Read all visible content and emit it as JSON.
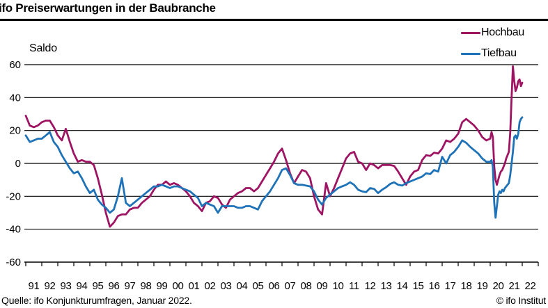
{
  "header": {
    "title": "ifo Preiserwartungen in der Baubranche"
  },
  "chart": {
    "y_axis_label": "Saldo",
    "legend": [
      {
        "label": "Hochbau",
        "color": "#9e1463"
      },
      {
        "label": "Tiefbau",
        "color": "#1e72b8"
      }
    ]
  },
  "chart_data": {
    "type": "line",
    "title": "ifo Preiserwartungen in der Baubranche",
    "ylabel": "Saldo",
    "ylim": [
      -60,
      60
    ],
    "y_ticks": [
      60,
      40,
      20,
      0,
      -20,
      -40,
      -60
    ],
    "x_tick_labels": [
      "91",
      "92",
      "93",
      "94",
      "95",
      "96",
      "97",
      "98",
      "99",
      "00",
      "01",
      "02",
      "03",
      "04",
      "05",
      "06",
      "07",
      "08",
      "09",
      "10",
      "11",
      "12",
      "13",
      "14",
      "15",
      "16",
      "17",
      "18",
      "19",
      "20",
      "21",
      "22"
    ],
    "x_range": [
      1991.0,
      2023.0
    ],
    "grid": true,
    "legend_position": "top-right",
    "x": [
      1991.0,
      1991.25,
      1991.5,
      1991.75,
      1992.0,
      1992.25,
      1992.5,
      1992.75,
      1993.0,
      1993.25,
      1993.5,
      1993.75,
      1994.0,
      1994.25,
      1994.5,
      1994.75,
      1995.0,
      1995.25,
      1995.5,
      1995.75,
      1996.0,
      1996.25,
      1996.5,
      1996.75,
      1997.0,
      1997.25,
      1997.5,
      1997.75,
      1998.0,
      1998.25,
      1998.5,
      1998.75,
      1999.0,
      1999.25,
      1999.5,
      1999.75,
      2000.0,
      2000.25,
      2000.5,
      2000.75,
      2001.0,
      2001.25,
      2001.5,
      2001.75,
      2002.0,
      2002.25,
      2002.5,
      2002.75,
      2003.0,
      2003.25,
      2003.5,
      2003.75,
      2004.0,
      2004.25,
      2004.5,
      2004.75,
      2005.0,
      2005.25,
      2005.5,
      2005.75,
      2006.0,
      2006.25,
      2006.5,
      2006.75,
      2007.0,
      2007.25,
      2007.5,
      2007.75,
      2008.0,
      2008.25,
      2008.5,
      2008.75,
      2009.0,
      2009.25,
      2009.5,
      2009.75,
      2010.0,
      2010.25,
      2010.5,
      2010.75,
      2011.0,
      2011.25,
      2011.5,
      2011.75,
      2012.0,
      2012.25,
      2012.5,
      2012.75,
      2013.0,
      2013.25,
      2013.5,
      2013.75,
      2014.0,
      2014.25,
      2014.5,
      2014.75,
      2015.0,
      2015.25,
      2015.5,
      2015.75,
      2016.0,
      2016.25,
      2016.5,
      2016.75,
      2017.0,
      2017.25,
      2017.5,
      2017.75,
      2018.0,
      2018.25,
      2018.5,
      2018.75,
      2019.0,
      2019.25,
      2019.5,
      2019.75,
      2020.0,
      2020.083,
      2020.167,
      2020.25,
      2020.333,
      2020.417,
      2020.5,
      2020.583,
      2020.667,
      2020.75,
      2020.833,
      2020.917,
      2021.0,
      2021.083,
      2021.167,
      2021.25,
      2021.333,
      2021.417,
      2021.5,
      2021.583,
      2021.667,
      2021.75,
      2021.833,
      2021.917,
      2022.0
    ],
    "series": [
      {
        "name": "Hochbau",
        "color": "#9e1463",
        "values": [
          29,
          23,
          22,
          23,
          25,
          26,
          26,
          22,
          17,
          14,
          21,
          13,
          6,
          1,
          2,
          1,
          1,
          -1,
          -9,
          -19,
          -30,
          -38.5,
          -36,
          -32,
          -31,
          -31,
          -28,
          -27,
          -27,
          -24,
          -22,
          -20,
          -16,
          -13,
          -13,
          -11,
          -13,
          -12,
          -13,
          -15,
          -17,
          -20,
          -24,
          -26,
          -29,
          -24,
          -23,
          -20,
          -21,
          -25,
          -27,
          -22,
          -20,
          -18,
          -17,
          -15,
          -15,
          -17,
          -15,
          -11,
          -7,
          -3,
          1,
          6,
          9,
          2,
          -6,
          -12,
          -8,
          -4,
          -5,
          -9,
          -20,
          -28,
          -31,
          -12,
          -20,
          -15,
          -9,
          -3,
          3,
          6,
          7,
          1,
          0,
          -4,
          0,
          -1,
          -3,
          -1,
          -1,
          -1,
          -1.5,
          -5,
          -9,
          -13,
          -8,
          -5,
          -4,
          2,
          5,
          4.5,
          6.5,
          6,
          9,
          14,
          13,
          15,
          18,
          25,
          27,
          25,
          23,
          20,
          16,
          14,
          15,
          19,
          16,
          -2,
          -10,
          -13,
          -10,
          -7,
          -5,
          -4,
          -2,
          0,
          3,
          5,
          7,
          19,
          40,
          59,
          50,
          44,
          46,
          50,
          51,
          47,
          49
        ]
      },
      {
        "name": "Tiefbau",
        "color": "#1e72b8",
        "values": [
          17,
          13,
          14,
          15,
          15,
          17,
          19,
          13,
          10,
          5,
          1,
          -3,
          -6,
          -5,
          -9,
          -14,
          -18,
          -16,
          -22,
          -25,
          -27,
          -30,
          -28,
          -20,
          -9,
          -24,
          -26,
          -24,
          -22,
          -20,
          -18,
          -16,
          -14,
          -14,
          -13,
          -14,
          -15,
          -14,
          -14,
          -15,
          -16,
          -17,
          -19,
          -21,
          -26,
          -24,
          -25,
          -26,
          -30,
          -26,
          -26,
          -26,
          -26,
          -27,
          -27,
          -26,
          -26,
          -27,
          -28,
          -23,
          -20,
          -17,
          -13,
          -9,
          -4,
          -3,
          -7,
          -12,
          -13,
          -13,
          -13.5,
          -14,
          -17,
          -22,
          -25,
          -21,
          -19,
          -17,
          -15,
          -14,
          -13,
          -11.5,
          -13,
          -16,
          -17,
          -17.5,
          -15,
          -15.5,
          -18,
          -16,
          -14.5,
          -12.5,
          -11.5,
          -13,
          -13.5,
          -12,
          -11,
          -10,
          -9,
          -8,
          -6,
          -6.5,
          -4,
          -5,
          4,
          0,
          5,
          7,
          10,
          14,
          12.5,
          10,
          8,
          6,
          3,
          1,
          1,
          2,
          -2,
          -24,
          -33,
          -26,
          -19,
          -17,
          -18,
          -16,
          -17,
          -15,
          -14,
          -13,
          -12,
          -7,
          0,
          7,
          16,
          17,
          15,
          18,
          25,
          27,
          28
        ]
      }
    ]
  },
  "footer": {
    "source": "Quelle: ifo Konjunkturumfragen, Januar 2022.",
    "copyright": "© ifo Institut"
  }
}
